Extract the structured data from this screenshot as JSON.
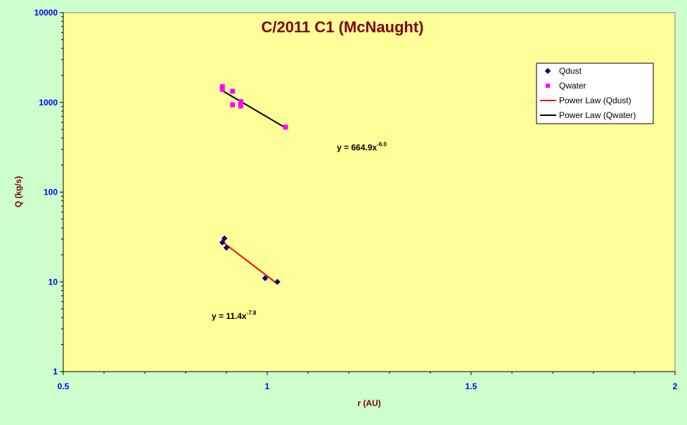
{
  "chart_data": {
    "type": "scatter",
    "title": "C/2011 C1 (McNaught)",
    "xlabel": "r (AU)",
    "ylabel": "Q (kg/s)",
    "xlim": [
      0.5,
      2
    ],
    "ylim": [
      1,
      10000
    ],
    "yscale": "log",
    "x_ticks": [
      "0.5",
      "1",
      "1.5",
      "2"
    ],
    "y_ticks": [
      "1",
      "10",
      "100",
      "1000",
      "10000"
    ],
    "grid": false,
    "legend_position": "top-right",
    "series": [
      {
        "name": "Qdust",
        "marker": "diamond",
        "color": "#000080",
        "points": [
          [
            0.89,
            27.5
          ],
          [
            0.895,
            30.5
          ],
          [
            0.9,
            24
          ],
          [
            0.995,
            11
          ],
          [
            1.025,
            10
          ]
        ]
      },
      {
        "name": "Qwater",
        "marker": "square",
        "color": "#ff00ff",
        "points": [
          [
            0.89,
            1500
          ],
          [
            0.89,
            1400
          ],
          [
            0.915,
            1330
          ],
          [
            0.915,
            940
          ],
          [
            0.935,
            1020
          ],
          [
            0.935,
            910
          ],
          [
            1.045,
            530
          ]
        ]
      }
    ],
    "trendlines": [
      {
        "name": "Power Law (Qdust)",
        "color": "#ff0000",
        "x_range": [
          0.89,
          1.025
        ],
        "y_range": [
          28,
          9.5
        ]
      },
      {
        "name": "Power Law (Qwater)",
        "color": "#000000",
        "x_range": [
          0.89,
          1.045
        ],
        "y_range": [
          1350,
          520
        ]
      }
    ],
    "annotations": [
      {
        "for": "Qwater",
        "base": "y = 664.9x",
        "exp": "-6.0"
      },
      {
        "for": "Qdust",
        "base": "y = 11.4x",
        "exp": "-7.8"
      }
    ]
  }
}
